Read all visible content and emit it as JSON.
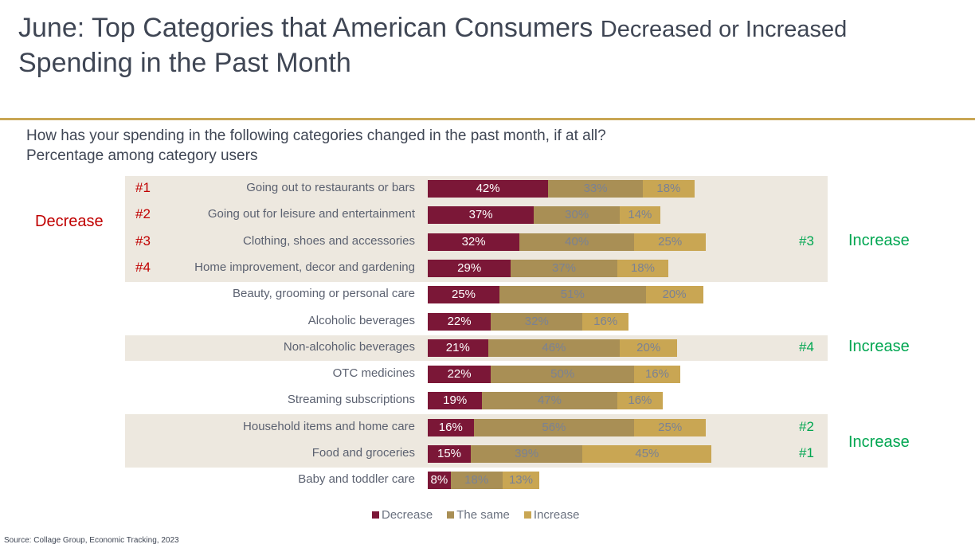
{
  "title": {
    "main": "June: Top Categories that American Consumers ",
    "decreased": "Decreased ",
    "or_increased": " or Increased",
    "line2": "Spending in the Past Month"
  },
  "question": "How has your spending in the following categories changed in the past month, if at all?",
  "subtitle": "Percentage among category users",
  "annotations": {
    "decrease": "Decrease",
    "increase": "Increase"
  },
  "source": "Source: Collage Group, Economic Tracking, 2023",
  "colors": {
    "decrease": "#7b1737",
    "same": "#a98f55",
    "increase": "#c9a653"
  },
  "chart_data": {
    "type": "bar",
    "stacked": true,
    "orientation": "horizontal",
    "categories": [
      "Going out to restaurants or bars",
      "Going out for leisure and entertainment",
      "Clothing, shoes and accessories",
      "Home improvement, decor and gardening",
      "Beauty, grooming or personal care",
      "Alcoholic beverages",
      "Non-alcoholic beverages",
      "OTC medicines",
      "Streaming subscriptions",
      "Household items and home care",
      "Food and groceries",
      "Baby and toddler care"
    ],
    "series": [
      {
        "name": "Decrease",
        "values": [
          42,
          37,
          32,
          29,
          25,
          22,
          21,
          22,
          19,
          16,
          15,
          8
        ]
      },
      {
        "name": "The same",
        "values": [
          33,
          30,
          40,
          37,
          51,
          32,
          46,
          50,
          47,
          56,
          39,
          18
        ]
      },
      {
        "name": "Increase",
        "values": [
          18,
          14,
          25,
          18,
          20,
          16,
          20,
          16,
          16,
          25,
          45,
          13
        ]
      }
    ],
    "decrease_ranks": [
      "#1",
      "#2",
      "#3",
      "#4",
      "",
      "",
      "",
      "",
      "",
      "",
      "",
      ""
    ],
    "increase_ranks": [
      "",
      "",
      "#3",
      "",
      "",
      "",
      "#4",
      "",
      "",
      "#2",
      "#1",
      ""
    ],
    "legend_position": "bottom"
  }
}
